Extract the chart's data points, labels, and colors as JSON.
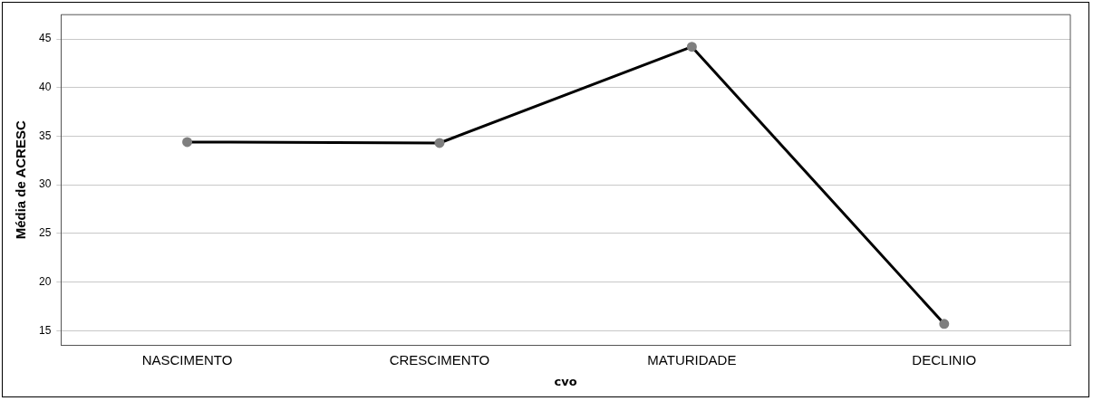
{
  "chart_data": {
    "type": "line",
    "xlabel": "cvo",
    "ylabel": "Média de ACRESC",
    "categories": [
      "NASCIMENTO",
      "CRESCIMENTO",
      "MATURIDADE",
      "DECLINIO"
    ],
    "series": [
      {
        "color": "#000000",
        "values": [
          34.4,
          34.3,
          44.2,
          15.7
        ]
      }
    ],
    "ylim": [
      13.5,
      47.5
    ],
    "yticks": [
      15,
      20,
      25,
      30,
      35,
      40,
      45
    ],
    "grid": "y",
    "marker": "circle",
    "line_style": "solid",
    "legend": false
  }
}
